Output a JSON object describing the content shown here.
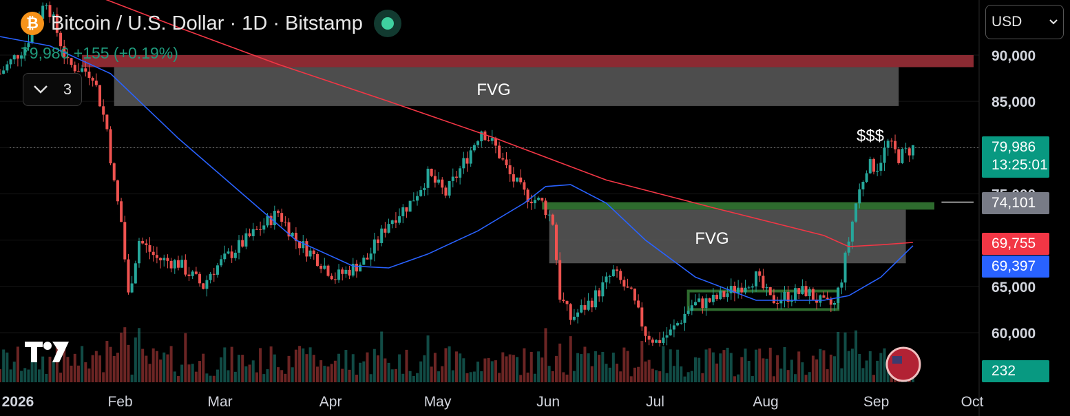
{
  "header": {
    "title": "Bitcoin / U.S. Dollar · 1D · Bitstamp",
    "price_change": "79,986 +155 (+0.19%)",
    "coin_icon": "₿",
    "collapse_count": "3",
    "currency": "USD"
  },
  "colors": {
    "up": "#26a69a",
    "down": "#ef5350",
    "ma_fast": "#2962ff",
    "ma_slow": "#f23645",
    "fvg": "#5a5a5a",
    "resistance": "#8b2a32",
    "support": "#2e6b2e"
  },
  "annotations": {
    "fvg_upper": "FVG",
    "fvg_lower": "FVG",
    "liquidity": "$$$"
  },
  "price_tags": {
    "last_price": "79,986",
    "countdown": "13:25:01",
    "level_74101": "74,101",
    "ma_red": "69,755",
    "ma_blue": "69,397",
    "volume": "232"
  },
  "chart_data": {
    "type": "candlestick",
    "symbol": "Bitcoin / U.S. Dollar",
    "interval": "1D",
    "exchange": "Bitstamp",
    "y_axis": {
      "ticks": [
        90000,
        85000,
        80000,
        75000,
        70000,
        65000,
        60000
      ],
      "tick_labels": [
        "90,000",
        "85,000",
        "75,000",
        "65,000",
        "60,000"
      ],
      "range": [
        55000,
        95000
      ]
    },
    "x_axis": {
      "labels": [
        "2026",
        "Feb",
        "Mar",
        "Apr",
        "May",
        "Jun",
        "Jul",
        "Aug",
        "Sep",
        "Oct"
      ],
      "range": [
        "2026-01-01",
        "2026-10-01"
      ]
    },
    "last_price": 79986,
    "change": 155,
    "change_pct": 0.19,
    "current_volume": 232,
    "moving_averages": [
      {
        "color": "ma_fast",
        "last": 69397
      },
      {
        "color": "ma_slow",
        "last": 69755
      }
    ],
    "price_path": [
      [
        "2026-01-01",
        88000
      ],
      [
        "2026-01-08",
        91000
      ],
      [
        "2026-01-14",
        96000
      ],
      [
        "2026-01-20",
        89000
      ],
      [
        "2026-01-27",
        88000
      ],
      [
        "2026-01-31",
        82000
      ],
      [
        "2026-02-02",
        76000
      ],
      [
        "2026-02-04",
        72000
      ],
      [
        "2026-02-06",
        64000
      ],
      [
        "2026-02-09",
        70000
      ],
      [
        "2026-02-14",
        68000
      ],
      [
        "2026-02-20",
        67500
      ],
      [
        "2026-02-27",
        65000
      ],
      [
        "2026-03-01",
        66500
      ],
      [
        "2026-03-08",
        69000
      ],
      [
        "2026-03-14",
        71000
      ],
      [
        "2026-03-20",
        73000
      ],
      [
        "2026-03-25",
        70000
      ],
      [
        "2026-03-31",
        68000
      ],
      [
        "2026-04-05",
        66000
      ],
      [
        "2026-04-10",
        67000
      ],
      [
        "2026-04-14",
        68000
      ],
      [
        "2026-04-20",
        72000
      ],
      [
        "2026-04-26",
        74000
      ],
      [
        "2026-05-01",
        77000
      ],
      [
        "2026-05-06",
        75000
      ],
      [
        "2026-05-12",
        79000
      ],
      [
        "2026-05-16",
        82000
      ],
      [
        "2026-05-20",
        80000
      ],
      [
        "2026-05-24",
        77000
      ],
      [
        "2026-05-28",
        75000
      ],
      [
        "2026-06-02",
        74000
      ],
      [
        "2026-06-05",
        72000
      ],
      [
        "2026-06-07",
        64000
      ],
      [
        "2026-06-10",
        61500
      ],
      [
        "2026-06-16",
        63500
      ],
      [
        "2026-06-22",
        66500
      ],
      [
        "2026-06-27",
        64000
      ],
      [
        "2026-07-01",
        60000
      ],
      [
        "2026-07-04",
        59000
      ],
      [
        "2026-07-08",
        60000
      ],
      [
        "2026-07-14",
        63000
      ],
      [
        "2026-07-20",
        63500
      ],
      [
        "2026-07-25",
        64500
      ],
      [
        "2026-08-01",
        66000
      ],
      [
        "2026-08-05",
        63500
      ],
      [
        "2026-08-10",
        64000
      ],
      [
        "2026-08-15",
        64500
      ],
      [
        "2026-08-20",
        63000
      ],
      [
        "2026-08-23",
        63000
      ],
      [
        "2026-08-25",
        66000
      ],
      [
        "2026-08-27",
        70000
      ],
      [
        "2026-08-29",
        74000
      ],
      [
        "2026-09-01",
        78000
      ],
      [
        "2026-09-04",
        78000
      ],
      [
        "2026-09-07",
        80500
      ],
      [
        "2026-09-10",
        79000
      ],
      [
        "2026-09-14",
        80000
      ]
    ],
    "ma_slow_path": [
      [
        "2026-01-24",
        97000
      ],
      [
        "2026-02-20",
        93000
      ],
      [
        "2026-03-20",
        89000
      ],
      [
        "2026-04-20",
        85000
      ],
      [
        "2026-05-20",
        81000
      ],
      [
        "2026-06-20",
        76500
      ],
      [
        "2026-07-20",
        73500
      ],
      [
        "2026-08-20",
        70500
      ],
      [
        "2026-08-27",
        69300
      ],
      [
        "2026-09-05",
        69500
      ],
      [
        "2026-09-14",
        69755
      ]
    ],
    "ma_fast_path": [
      [
        "2026-01-01",
        92000
      ],
      [
        "2026-01-15",
        91000
      ],
      [
        "2026-02-01",
        88000
      ],
      [
        "2026-02-20",
        81000
      ],
      [
        "2026-03-10",
        75000
      ],
      [
        "2026-03-25",
        70000
      ],
      [
        "2026-04-10",
        67200
      ],
      [
        "2026-04-20",
        67000
      ],
      [
        "2026-05-01",
        68500
      ],
      [
        "2026-05-15",
        71000
      ],
      [
        "2026-05-28",
        74000
      ],
      [
        "2026-06-03",
        75800
      ],
      [
        "2026-06-10",
        76000
      ],
      [
        "2026-06-20",
        74000
      ],
      [
        "2026-07-01",
        70000
      ],
      [
        "2026-07-15",
        66000
      ],
      [
        "2026-08-01",
        63500
      ],
      [
        "2026-08-20",
        63500
      ],
      [
        "2026-08-27",
        64000
      ],
      [
        "2026-09-05",
        66000
      ],
      [
        "2026-09-14",
        69397
      ]
    ],
    "zones": [
      {
        "label": "FVG",
        "from": "2026-02-02",
        "to": "2026-09-10",
        "low": 84500,
        "high": 88700,
        "style": "fvg"
      },
      {
        "label": "FVG",
        "from": "2026-06-04",
        "to": "2026-09-12",
        "low": 67500,
        "high": 73300,
        "style": "fvg"
      },
      {
        "from": "2026-01-24",
        "to": "2026-10-01",
        "low": 88700,
        "high": 90000,
        "style": "resistance"
      },
      {
        "from": "2026-06-02",
        "to": "2026-09-20",
        "low": 73300,
        "high": 74101,
        "style": "support"
      }
    ],
    "range_box": {
      "from": "2026-07-13",
      "to": "2026-08-24",
      "low": 62500,
      "high": 64500
    },
    "level_line": {
      "from": "2026-09-22",
      "to": "2026-10-01",
      "value": 74101
    }
  }
}
